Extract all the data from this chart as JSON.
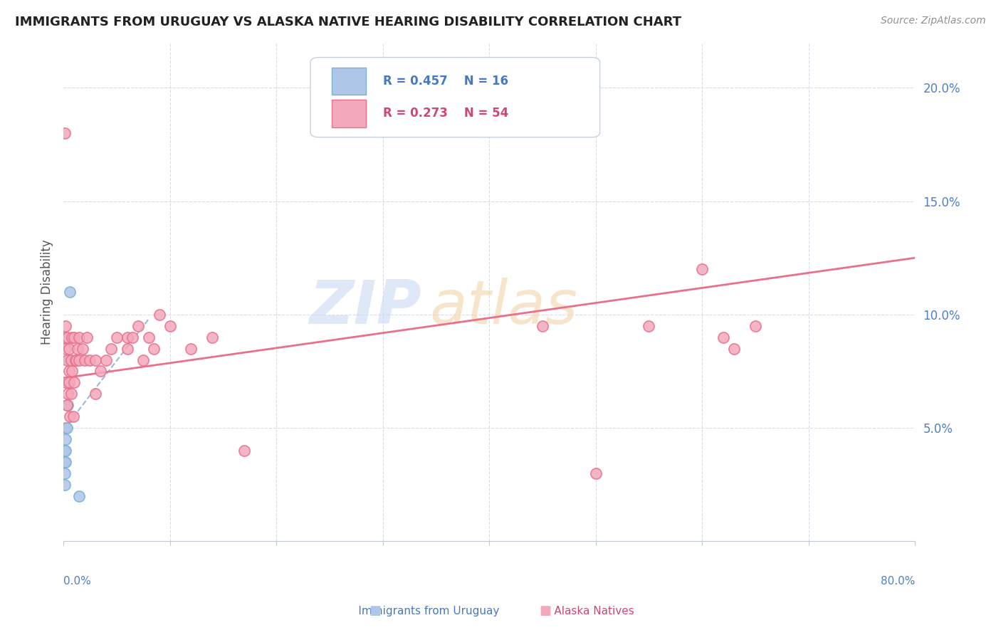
{
  "title": "IMMIGRANTS FROM URUGUAY VS ALASKA NATIVE HEARING DISABILITY CORRELATION CHART",
  "source": "Source: ZipAtlas.com",
  "ylabel": "Hearing Disability",
  "legend1_label": "Immigrants from Uruguay",
  "legend2_label": "Alaska Natives",
  "r1": 0.457,
  "n1": 16,
  "r2": 0.273,
  "n2": 54,
  "color_blue_fill": "#aec6e8",
  "color_blue_edge": "#7bafd4",
  "color_pink_fill": "#f4a8bc",
  "color_pink_edge": "#e8708a",
  "color_line_blue": "#a0b8d8",
  "color_line_pink": "#e8708a",
  "color_grid": "#d8dce8",
  "xlim": [
    0.0,
    0.8
  ],
  "ylim": [
    0.0,
    0.22
  ],
  "yticks": [
    0.05,
    0.1,
    0.15,
    0.2
  ],
  "ytick_labels": [
    "5.0%",
    "10.0%",
    "15.0%",
    "20.0%"
  ],
  "xticks": [
    0.0,
    0.1,
    0.2,
    0.3,
    0.4,
    0.5,
    0.6,
    0.7,
    0.8
  ],
  "blue_x": [
    0.001,
    0.001,
    0.001,
    0.001,
    0.002,
    0.002,
    0.002,
    0.002,
    0.003,
    0.003,
    0.004,
    0.004,
    0.005,
    0.005,
    0.006,
    0.015
  ],
  "blue_y": [
    0.025,
    0.03,
    0.035,
    0.04,
    0.035,
    0.04,
    0.045,
    0.05,
    0.05,
    0.06,
    0.06,
    0.07,
    0.07,
    0.08,
    0.11,
    0.02
  ],
  "pink_x": [
    0.001,
    0.001,
    0.002,
    0.002,
    0.002,
    0.003,
    0.003,
    0.004,
    0.004,
    0.005,
    0.005,
    0.005,
    0.006,
    0.007,
    0.007,
    0.008,
    0.008,
    0.009,
    0.01,
    0.01,
    0.011,
    0.012,
    0.013,
    0.015,
    0.015,
    0.018,
    0.02,
    0.022,
    0.025,
    0.03,
    0.03,
    0.035,
    0.04,
    0.045,
    0.05,
    0.06,
    0.06,
    0.065,
    0.07,
    0.075,
    0.08,
    0.085,
    0.09,
    0.1,
    0.12,
    0.14,
    0.17,
    0.45,
    0.5,
    0.55,
    0.6,
    0.62,
    0.63,
    0.65
  ],
  "pink_y": [
    0.09,
    0.18,
    0.07,
    0.085,
    0.095,
    0.06,
    0.08,
    0.065,
    0.09,
    0.07,
    0.075,
    0.085,
    0.055,
    0.065,
    0.08,
    0.075,
    0.09,
    0.055,
    0.07,
    0.09,
    0.08,
    0.08,
    0.085,
    0.08,
    0.09,
    0.085,
    0.08,
    0.09,
    0.08,
    0.065,
    0.08,
    0.075,
    0.08,
    0.085,
    0.09,
    0.085,
    0.09,
    0.09,
    0.095,
    0.08,
    0.09,
    0.085,
    0.1,
    0.095,
    0.085,
    0.09,
    0.04,
    0.095,
    0.03,
    0.095,
    0.12,
    0.09,
    0.085,
    0.095
  ],
  "blue_line_x0": 0.0,
  "blue_line_x1": 0.08,
  "pink_line_x0": 0.0,
  "pink_line_x1": 0.8,
  "pink_line_y0": 0.072,
  "pink_line_y1": 0.125
}
